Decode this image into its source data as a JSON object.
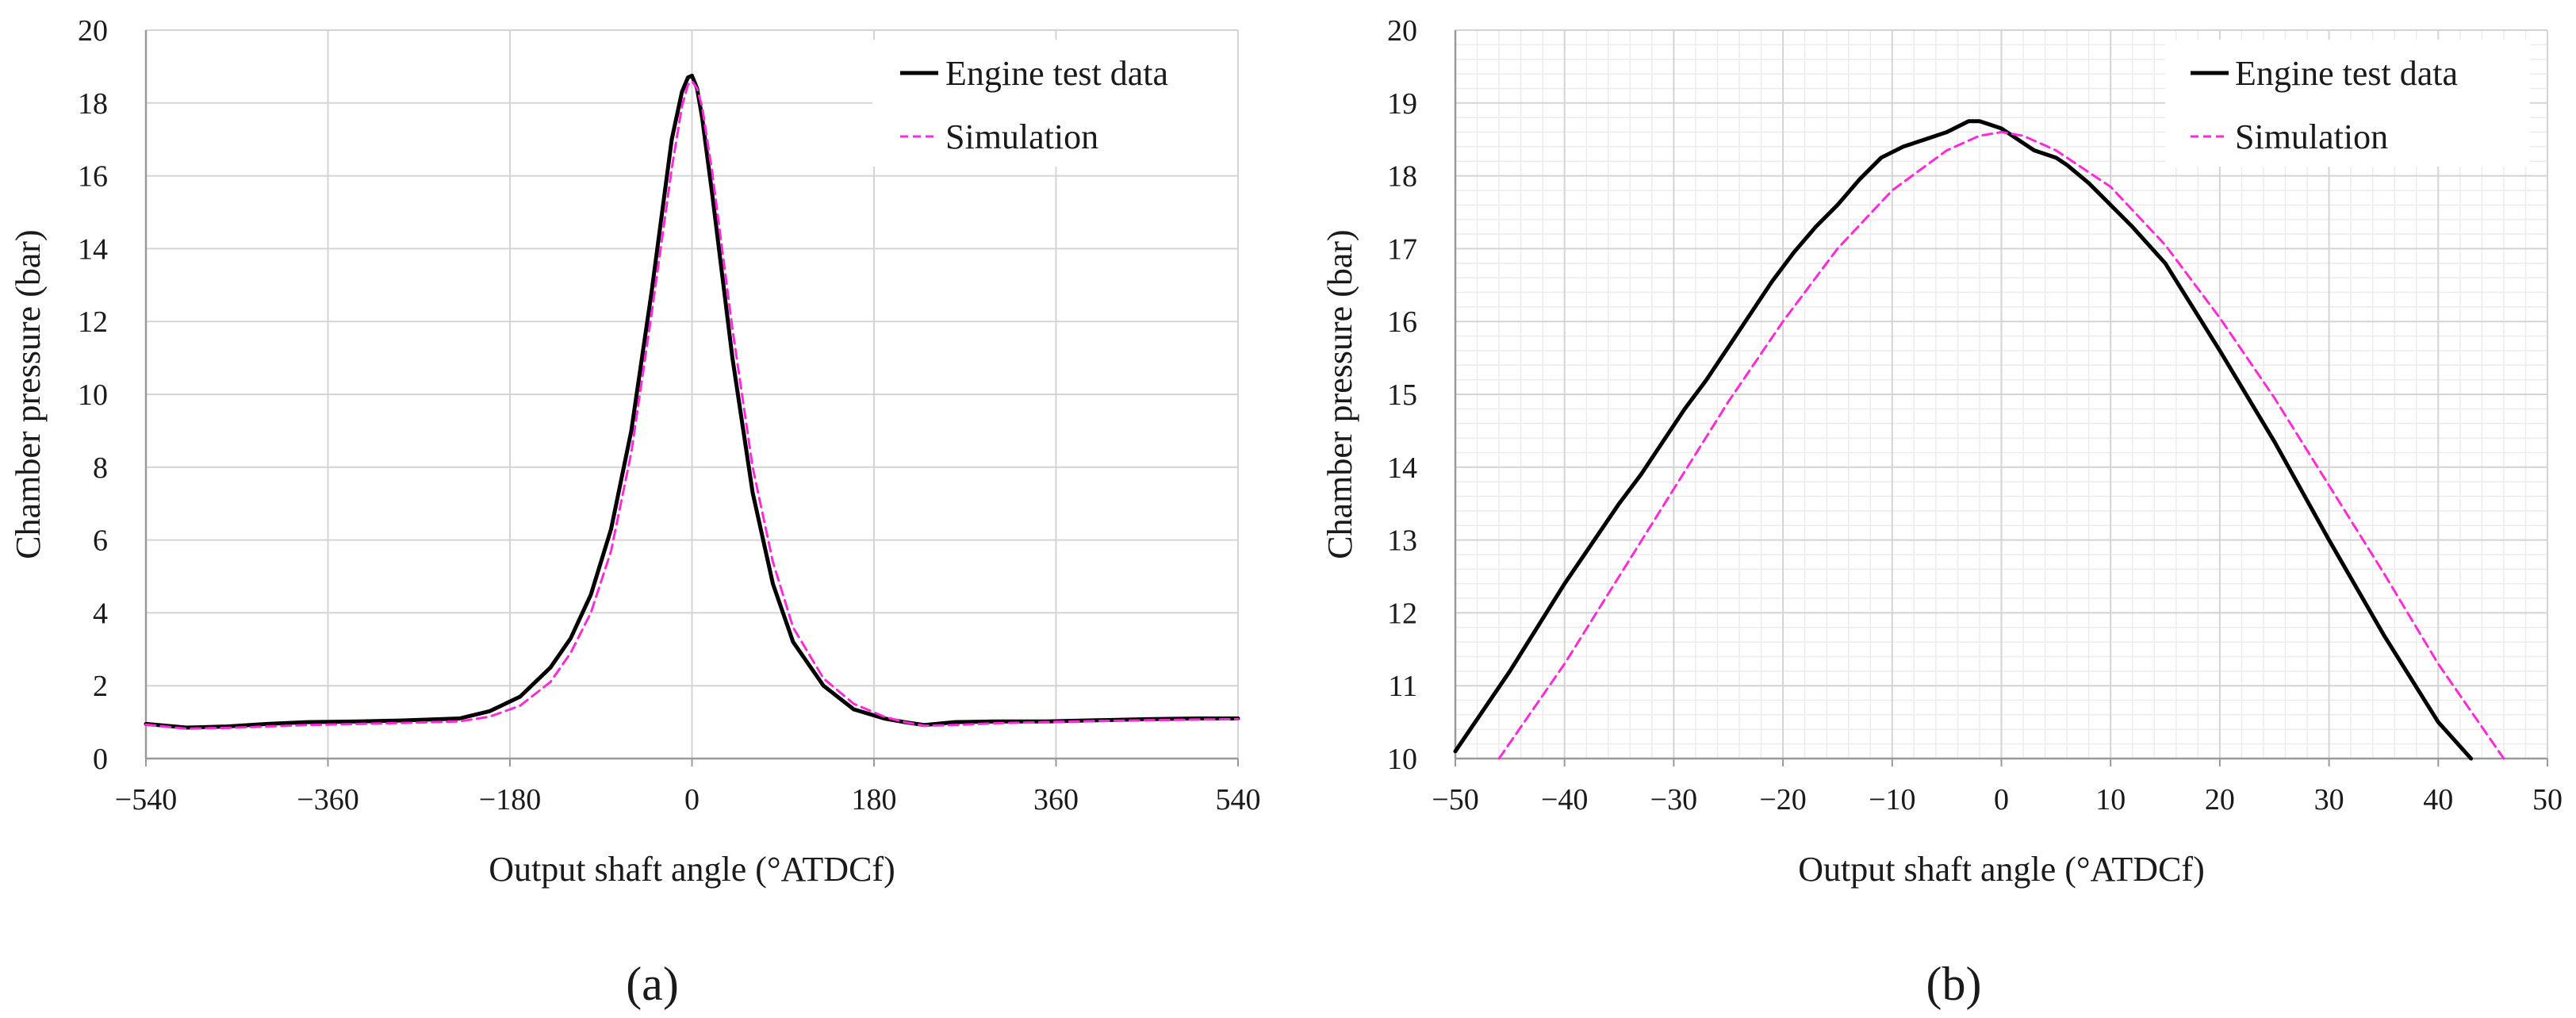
{
  "colors": {
    "test": "#000000",
    "sim": "#ff2bd6",
    "grid": "#d4d4d4",
    "minorgrid": "#ececec",
    "axis": "#9a9a9a"
  },
  "chart_data": [
    {
      "type": "line",
      "panel_label": "(a)",
      "xlabel": "Output shaft angle (°ATDCf)",
      "ylabel": "Chamber pressure (bar)",
      "xlim": [
        -540,
        540
      ],
      "ylim": [
        0,
        20
      ],
      "xticks": [
        -540,
        -360,
        -180,
        0,
        180,
        360,
        540
      ],
      "xtick_labels": [
        "−540",
        "−360",
        "−180",
        "0",
        "180",
        "360",
        "540"
      ],
      "yticks": [
        0,
        2,
        4,
        6,
        8,
        10,
        12,
        14,
        16,
        18,
        20
      ],
      "ytick_labels": [
        "0",
        "2",
        "4",
        "6",
        "8",
        "10",
        "12",
        "14",
        "16",
        "18",
        "20"
      ],
      "minor_grid": false,
      "legend": {
        "position": "top-right",
        "entries": [
          "Engine test data",
          "Simulation"
        ]
      },
      "series": [
        {
          "name": "Engine test data",
          "style": "solid",
          "x": [
            -540,
            -500,
            -460,
            -420,
            -380,
            -330,
            -280,
            -230,
            -200,
            -170,
            -140,
            -120,
            -100,
            -80,
            -60,
            -40,
            -20,
            -10,
            -4,
            0,
            5,
            10,
            20,
            40,
            60,
            80,
            100,
            130,
            160,
            190,
            210,
            230,
            260,
            300,
            350,
            400,
            450,
            500,
            540
          ],
          "y": [
            0.95,
            0.85,
            0.88,
            0.95,
            1.0,
            1.02,
            1.05,
            1.1,
            1.3,
            1.7,
            2.5,
            3.3,
            4.5,
            6.3,
            9.0,
            12.8,
            17.0,
            18.3,
            18.7,
            18.75,
            18.4,
            17.6,
            15.5,
            11.0,
            7.3,
            4.8,
            3.2,
            2.0,
            1.35,
            1.1,
            1.0,
            0.92,
            1.0,
            1.02,
            1.02,
            1.05,
            1.08,
            1.1,
            1.1
          ]
        },
        {
          "name": "Simulation",
          "style": "dashed",
          "x": [
            -540,
            -500,
            -460,
            -420,
            -380,
            -330,
            -280,
            -230,
            -200,
            -170,
            -140,
            -120,
            -100,
            -80,
            -60,
            -40,
            -20,
            -10,
            -4,
            0,
            5,
            10,
            20,
            40,
            60,
            80,
            100,
            130,
            160,
            190,
            210,
            230,
            260,
            300,
            350,
            400,
            450,
            500,
            540
          ],
          "y": [
            0.93,
            0.82,
            0.84,
            0.88,
            0.92,
            0.95,
            0.98,
            1.02,
            1.15,
            1.45,
            2.1,
            2.9,
            4.0,
            5.7,
            8.4,
            12.2,
            16.2,
            17.9,
            18.5,
            18.6,
            18.4,
            17.9,
            16.1,
            11.8,
            8.0,
            5.4,
            3.6,
            2.2,
            1.5,
            1.15,
            1.0,
            0.9,
            0.92,
            0.97,
            1.0,
            1.03,
            1.05,
            1.07,
            1.08
          ]
        }
      ]
    },
    {
      "type": "line",
      "panel_label": "(b)",
      "xlabel": "Output shaft angle (°ATDCf)",
      "ylabel": "Chamber pressure (bar)",
      "xlim": [
        -50,
        50
      ],
      "ylim": [
        10,
        20
      ],
      "xticks": [
        -50,
        -40,
        -30,
        -20,
        -10,
        0,
        10,
        20,
        30,
        40,
        50
      ],
      "xtick_labels": [
        "−50",
        "−40",
        "−30",
        "−20",
        "−10",
        "0",
        "10",
        "20",
        "30",
        "40",
        "50"
      ],
      "yticks": [
        10,
        11,
        12,
        13,
        14,
        15,
        16,
        17,
        18,
        19,
        20
      ],
      "ytick_labels": [
        "10",
        "11",
        "12",
        "13",
        "14",
        "15",
        "16",
        "17",
        "18",
        "19",
        "20"
      ],
      "minor_grid": true,
      "minor_x_step": 2,
      "minor_y_step": 0.2,
      "legend": {
        "position": "top-right",
        "entries": [
          "Engine test data",
          "Simulation"
        ]
      },
      "series": [
        {
          "name": "Engine test data",
          "style": "solid",
          "x": [
            -50,
            -45,
            -40,
            -35,
            -33,
            -31,
            -29,
            -27,
            -25,
            -23,
            -21,
            -19,
            -17,
            -15,
            -13,
            -11,
            -9,
            -7,
            -5,
            -3,
            -2,
            -1,
            0,
            1,
            2,
            3,
            4,
            5,
            6,
            8,
            10,
            12,
            15,
            20,
            25,
            30,
            35,
            40,
            43
          ],
          "y": [
            10.1,
            11.2,
            12.4,
            13.5,
            13.9,
            14.35,
            14.8,
            15.2,
            15.65,
            16.1,
            16.55,
            16.95,
            17.3,
            17.6,
            17.95,
            18.25,
            18.4,
            18.5,
            18.6,
            18.75,
            18.75,
            18.7,
            18.65,
            18.55,
            18.45,
            18.35,
            18.3,
            18.25,
            18.15,
            17.9,
            17.6,
            17.3,
            16.8,
            15.6,
            14.35,
            13.0,
            11.7,
            10.5,
            10.0
          ]
        },
        {
          "name": "Simulation",
          "style": "dashed",
          "x": [
            -46,
            -40,
            -35,
            -30,
            -25,
            -20,
            -15,
            -10,
            -5,
            -2,
            0,
            2,
            5,
            10,
            15,
            20,
            25,
            30,
            35,
            40,
            46
          ],
          "y": [
            10.0,
            11.3,
            12.5,
            13.7,
            14.9,
            16.0,
            17.0,
            17.8,
            18.35,
            18.55,
            18.6,
            18.55,
            18.35,
            17.85,
            17.05,
            16.05,
            14.95,
            13.75,
            12.55,
            11.3,
            10.0
          ]
        }
      ]
    }
  ]
}
